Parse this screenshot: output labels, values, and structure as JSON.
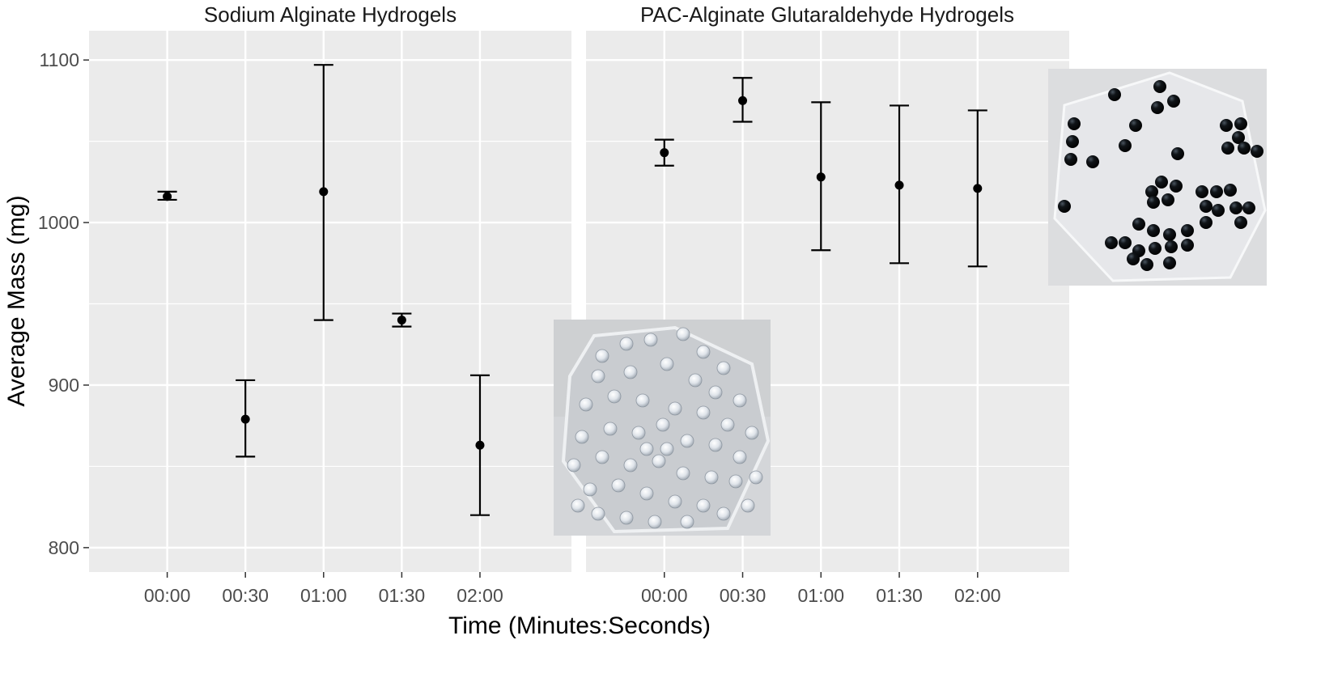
{
  "chart_data": {
    "type": "scatter",
    "xlabel": "Time (Minutes:Seconds)",
    "ylabel": "Average Mass (mg)",
    "categories": [
      "00:00",
      "00:30",
      "01:00",
      "01:30",
      "02:00"
    ],
    "ylim": [
      785,
      1118
    ],
    "yticks": [
      800,
      900,
      1000,
      1100
    ],
    "grid": true,
    "panels": [
      {
        "title": "Sodium Alginate Hydrogels",
        "mean": [
          1016,
          879,
          1019,
          940,
          863
        ],
        "lower": [
          1014,
          856,
          940,
          936,
          820
        ],
        "upper": [
          1019,
          903,
          1097,
          944,
          906
        ]
      },
      {
        "title": "PAC-Alginate Glutaraldehyde Hydrogels",
        "mean": [
          1043,
          1075,
          1028,
          1023,
          1021
        ],
        "lower": [
          1035,
          1062,
          983,
          975,
          973
        ],
        "upper": [
          1051,
          1089,
          1074,
          1072,
          1069
        ]
      }
    ]
  },
  "colors": {
    "panel_bg": "#ebebeb",
    "grid": "#ffffff",
    "points": "#000000"
  },
  "photos": [
    {
      "name": "clear-hydrogel-beads-photo"
    },
    {
      "name": "black-hydrogel-beads-photo"
    }
  ]
}
